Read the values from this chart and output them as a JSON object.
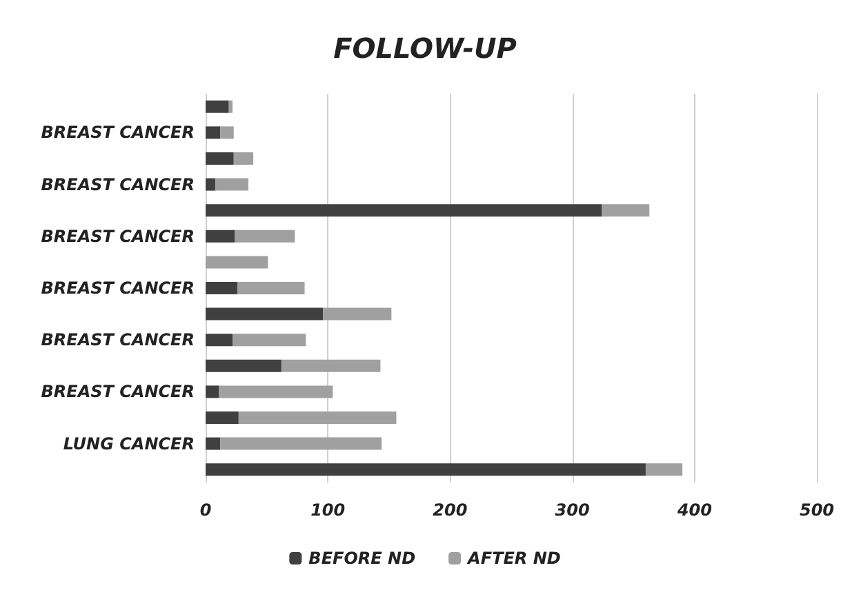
{
  "chart_data": {
    "type": "bar",
    "orientation": "horizontal",
    "stacked": true,
    "title": "FOLLOW-UP",
    "categories": [
      null,
      "BREAST CANCER",
      null,
      "BREAST CANCER",
      null,
      "BREAST CANCER",
      null,
      "BREAST CANCER",
      null,
      "BREAST CANCER",
      null,
      "BREAST CANCER",
      null,
      "LUNG CANCER",
      null
    ],
    "series": [
      {
        "name": "BEFORE ND",
        "color": "#404040",
        "values": [
          19,
          12,
          23,
          8,
          324,
          24,
          0,
          26,
          96,
          22,
          62,
          11,
          27,
          12,
          360
        ]
      },
      {
        "name": "AFTER ND",
        "color": "#a0a0a0",
        "values": [
          3,
          11,
          16,
          27,
          39,
          49,
          51,
          55,
          56,
          60,
          81,
          93,
          129,
          132,
          30
        ]
      }
    ],
    "xlim": [
      0,
      500
    ],
    "xticks": [
      0,
      100,
      200,
      300,
      400,
      500
    ],
    "grid": "x",
    "legend": "bottom"
  }
}
